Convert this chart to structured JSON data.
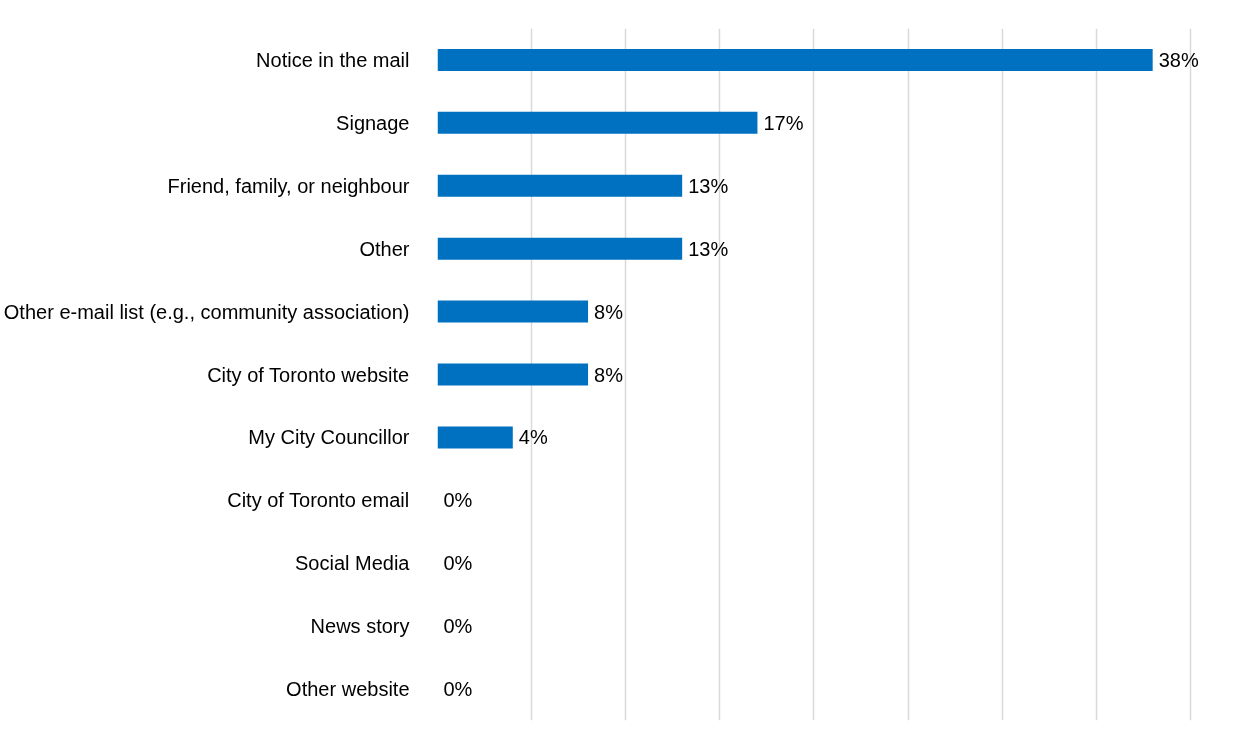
{
  "chart_data": {
    "type": "bar",
    "orientation": "horizontal",
    "categories": [
      "Notice in the mail",
      "Signage",
      "Friend, family, or neighbour",
      "Other",
      "Other e-mail list (e.g., community association)",
      "City of Toronto website",
      "My City Councillor",
      "City of Toronto email",
      "Social Media",
      "News story",
      "Other website"
    ],
    "values": [
      38,
      17,
      13,
      13,
      8,
      8,
      4,
      0,
      0,
      0,
      0
    ],
    "value_labels": [
      "38%",
      "17%",
      "13%",
      "13%",
      "8%",
      "8%",
      "4%",
      "0%",
      "0%",
      "0%",
      "0%"
    ],
    "color": "#0070c0",
    "grid": "x",
    "tick_labels": "y"
  }
}
